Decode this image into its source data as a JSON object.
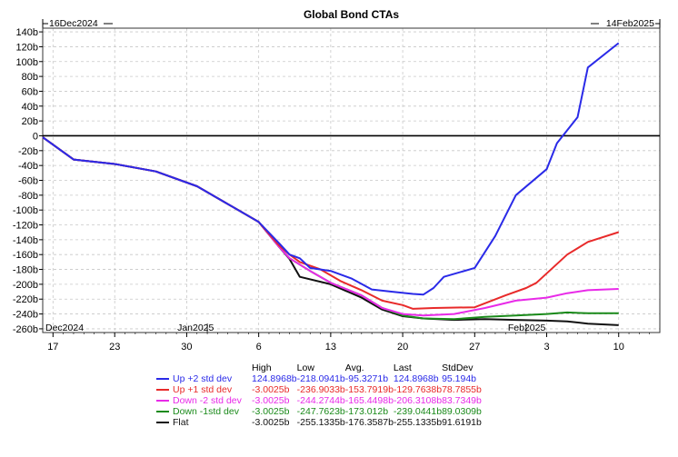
{
  "chart_data": {
    "type": "line",
    "title": "Global Bond CTAs",
    "range_start": "16Dec2024",
    "range_end": "14Feb2025",
    "ylim": [
      -265,
      145
    ],
    "y_ticks": [
      140,
      120,
      100,
      80,
      60,
      40,
      20,
      0,
      -20,
      -40,
      -60,
      -80,
      -100,
      -120,
      -140,
      -160,
      -180,
      -200,
      -220,
      -240,
      -260
    ],
    "y_tick_labels": [
      "140b",
      "120b",
      "100b",
      "80b",
      "60b",
      "40b",
      "20b",
      "0",
      "-20b",
      "-40b",
      "-60b",
      "-80b",
      "-100b",
      "-120b",
      "-140b",
      "-160b",
      "-180b",
      "-200b",
      "-220b",
      "-240b",
      "-260b"
    ],
    "x_tick_labels": [
      "17",
      "23",
      "30",
      "6",
      "13",
      "20",
      "27",
      "3",
      "10"
    ],
    "x_tick_dates": [
      "2024-12-17",
      "2024-12-23",
      "2024-12-30",
      "2025-01-06",
      "2025-01-13",
      "2025-01-20",
      "2025-01-27",
      "2025-02-03",
      "2025-02-10"
    ],
    "month_labels": [
      "Dec2024",
      "Jan2025",
      "Feb2025"
    ],
    "legend_headers": [
      "High",
      "Low",
      "Avg.",
      "Last",
      "StdDev"
    ],
    "series": [
      {
        "name": "Up +2 std dev",
        "color": "#2a2ae8",
        "stats": [
          "124.8968b",
          "-218.0941b",
          "-95.3271b",
          "124.8968b",
          "95.194b"
        ],
        "points": [
          [
            "2024-12-16",
            -2
          ],
          [
            "2024-12-19",
            -32
          ],
          [
            "2024-12-23",
            -38
          ],
          [
            "2024-12-27",
            -48
          ],
          [
            "2024-12-31",
            -68
          ],
          [
            "2025-01-03",
            -92
          ],
          [
            "2025-01-06",
            -116
          ],
          [
            "2025-01-08",
            -145
          ],
          [
            "2025-01-09",
            -160
          ],
          [
            "2025-01-10",
            -165
          ],
          [
            "2025-01-11",
            -178
          ],
          [
            "2025-01-13",
            -182
          ],
          [
            "2025-01-15",
            -192
          ],
          [
            "2025-01-17",
            -207
          ],
          [
            "2025-01-19",
            -210
          ],
          [
            "2025-01-21",
            -213
          ],
          [
            "2025-01-22",
            -214
          ],
          [
            "2025-01-23",
            -205
          ],
          [
            "2025-01-24",
            -190
          ],
          [
            "2025-01-27",
            -178
          ],
          [
            "2025-01-29",
            -135
          ],
          [
            "2025-01-31",
            -80
          ],
          [
            "2025-02-03",
            -45
          ],
          [
            "2025-02-04",
            -10
          ],
          [
            "2025-02-06",
            25
          ],
          [
            "2025-02-07",
            92
          ],
          [
            "2025-02-10",
            124.9
          ]
        ]
      },
      {
        "name": "Up +1 std dev",
        "color": "#e82a2a",
        "stats": [
          "-3.0025b",
          "-236.9033b",
          "-153.7919b",
          "-129.7638b",
          "78.7855b"
        ],
        "points": [
          [
            "2024-12-16",
            -2
          ],
          [
            "2024-12-19",
            -32
          ],
          [
            "2024-12-23",
            -38
          ],
          [
            "2024-12-27",
            -48
          ],
          [
            "2024-12-31",
            -68
          ],
          [
            "2025-01-03",
            -92
          ],
          [
            "2025-01-06",
            -116
          ],
          [
            "2025-01-08",
            -148
          ],
          [
            "2025-01-09",
            -160
          ],
          [
            "2025-01-10",
            -170
          ],
          [
            "2025-01-12",
            -180
          ],
          [
            "2025-01-14",
            -196
          ],
          [
            "2025-01-16",
            -208
          ],
          [
            "2025-01-18",
            -222
          ],
          [
            "2025-01-20",
            -228
          ],
          [
            "2025-01-21",
            -233
          ],
          [
            "2025-01-23",
            -232
          ],
          [
            "2025-01-27",
            -231
          ],
          [
            "2025-01-30",
            -215
          ],
          [
            "2025-02-01",
            -205
          ],
          [
            "2025-02-02",
            -198
          ],
          [
            "2025-02-05",
            -160
          ],
          [
            "2025-02-07",
            -143
          ],
          [
            "2025-02-10",
            -129.8
          ]
        ]
      },
      {
        "name": "Down -2 std dev",
        "color": "#e82ae8",
        "stats": [
          "-3.0025b",
          "-244.2744b",
          "-165.4498b",
          "-206.3108b",
          "83.7349b"
        ],
        "points": [
          [
            "2024-12-16",
            -2
          ],
          [
            "2024-12-19",
            -32
          ],
          [
            "2024-12-23",
            -38
          ],
          [
            "2024-12-27",
            -48
          ],
          [
            "2024-12-31",
            -68
          ],
          [
            "2025-01-03",
            -92
          ],
          [
            "2025-01-06",
            -116
          ],
          [
            "2025-01-08",
            -150
          ],
          [
            "2025-01-09",
            -165
          ],
          [
            "2025-01-11",
            -182
          ],
          [
            "2025-01-13",
            -198
          ],
          [
            "2025-01-16",
            -215
          ],
          [
            "2025-01-18",
            -232
          ],
          [
            "2025-01-20",
            -240
          ],
          [
            "2025-01-22",
            -242
          ],
          [
            "2025-01-25",
            -240
          ],
          [
            "2025-01-28",
            -232
          ],
          [
            "2025-01-31",
            -222
          ],
          [
            "2025-02-03",
            -218
          ],
          [
            "2025-02-05",
            -212
          ],
          [
            "2025-02-07",
            -208
          ],
          [
            "2025-02-10",
            -206.3
          ]
        ]
      },
      {
        "name": "Down -1std dev",
        "color": "#1a8a1a",
        "stats": [
          "-3.0025b",
          "-247.7623b",
          "-173.012b",
          "-239.0441b",
          "89.0309b"
        ],
        "points": [
          [
            "2024-12-16",
            -2
          ],
          [
            "2024-12-19",
            -32
          ],
          [
            "2024-12-23",
            -38
          ],
          [
            "2024-12-27",
            -48
          ],
          [
            "2024-12-31",
            -68
          ],
          [
            "2025-01-03",
            -92
          ],
          [
            "2025-01-06",
            -116
          ],
          [
            "2025-01-08",
            -150
          ],
          [
            "2025-01-09",
            -165
          ],
          [
            "2025-01-11",
            -182
          ],
          [
            "2025-01-13",
            -198
          ],
          [
            "2025-01-16",
            -215
          ],
          [
            "2025-01-18",
            -232
          ],
          [
            "2025-01-20",
            -242
          ],
          [
            "2025-01-22",
            -246
          ],
          [
            "2025-01-25",
            -247
          ],
          [
            "2025-01-28",
            -244
          ],
          [
            "2025-01-31",
            -242
          ],
          [
            "2025-02-03",
            -240
          ],
          [
            "2025-02-05",
            -238
          ],
          [
            "2025-02-07",
            -239
          ],
          [
            "2025-02-10",
            -239.0
          ]
        ]
      },
      {
        "name": "Flat",
        "color": "#111111",
        "stats": [
          "-3.0025b",
          "-255.1335b",
          "-176.3587b",
          "-255.1335b",
          "91.6191b"
        ],
        "points": [
          [
            "2024-12-16",
            -2
          ],
          [
            "2024-12-19",
            -32
          ],
          [
            "2024-12-23",
            -38
          ],
          [
            "2024-12-27",
            -48
          ],
          [
            "2024-12-31",
            -68
          ],
          [
            "2025-01-03",
            -92
          ],
          [
            "2025-01-06",
            -116
          ],
          [
            "2025-01-08",
            -150
          ],
          [
            "2025-01-09",
            -166
          ],
          [
            "2025-01-10",
            -190
          ],
          [
            "2025-01-13",
            -200
          ],
          [
            "2025-01-16",
            -218
          ],
          [
            "2025-01-18",
            -234
          ],
          [
            "2025-01-20",
            -243
          ],
          [
            "2025-01-22",
            -246
          ],
          [
            "2025-01-25",
            -248
          ],
          [
            "2025-01-28",
            -247
          ],
          [
            "2025-01-31",
            -248
          ],
          [
            "2025-02-03",
            -249
          ],
          [
            "2025-02-05",
            -250
          ],
          [
            "2025-02-07",
            -253
          ],
          [
            "2025-02-10",
            -255.1
          ]
        ]
      }
    ]
  }
}
